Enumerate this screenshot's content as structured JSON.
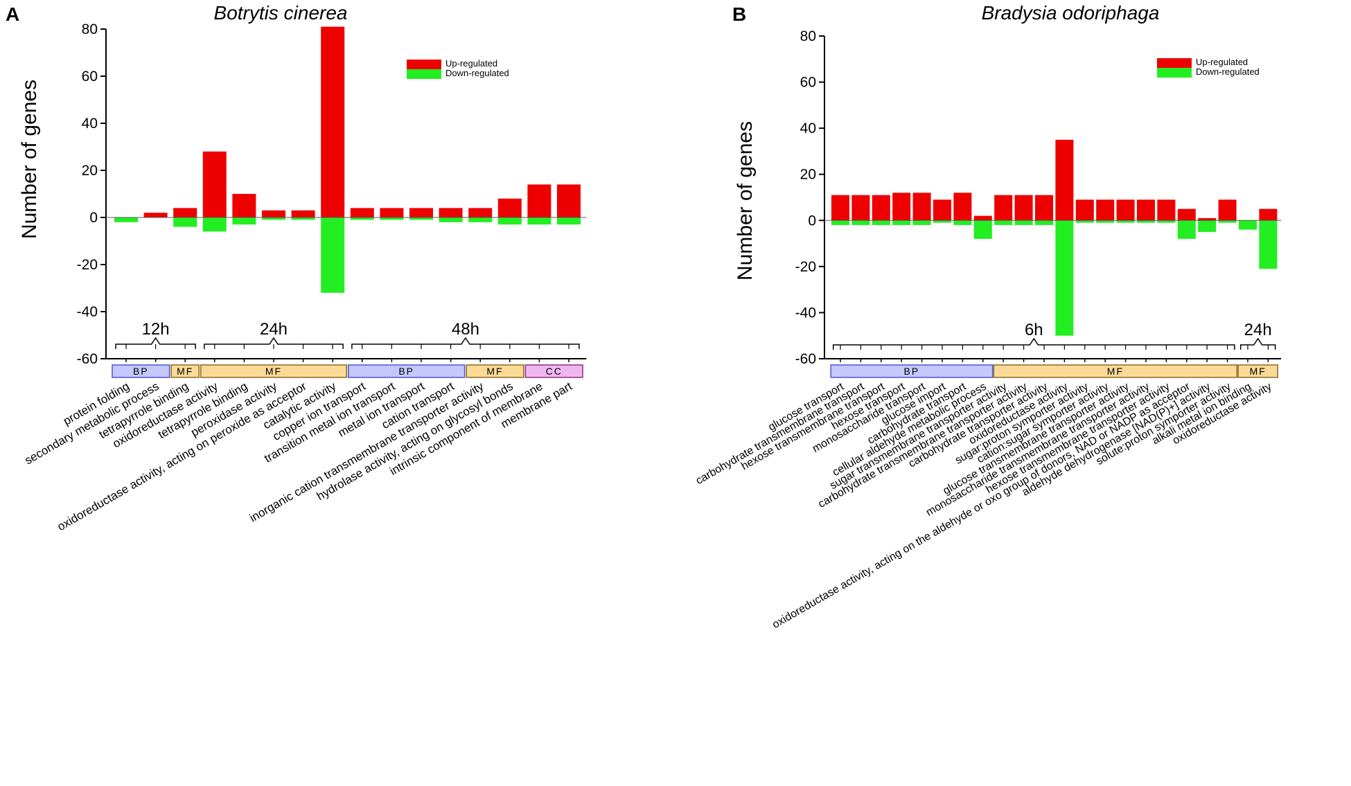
{
  "legend": {
    "up": "Up-regulated",
    "down": "Down-regulated"
  },
  "colors": {
    "up": "#ee0000",
    "down": "#22ee22",
    "axis": "#000000",
    "bp": "#c4c8fb",
    "bp_border": "#4b53d6",
    "mf": "#fbd996",
    "mf_border": "#8b6a1a",
    "cc": "#f0b6ee",
    "cc_border": "#8a2f86"
  },
  "chart_data": [
    {
      "type": "bar",
      "panel_letter": "A",
      "title": "Botrytis cinerea",
      "xlabel": "",
      "ylabel": "Number of genes",
      "ylim": [
        -60,
        80
      ],
      "yticks": [
        -60,
        -40,
        -20,
        0,
        20,
        40,
        60,
        80
      ],
      "ytick_labels": [
        "-60",
        "-40",
        "-20",
        "0",
        "20",
        "40",
        "60",
        "80"
      ],
      "categories": [
        "protein folding",
        "secondary metabolic process",
        "tetrapyrrole binding",
        "oxidoreductase activity",
        "tetrapyrrole binding",
        "peroxidase activity",
        "oxidoreductase activity, acting on peroxide as acceptor",
        "catalytic activity",
        "copper ion transport",
        "transition metal ion transport",
        "metal ion transport",
        "cation transport",
        "inorganic cation transmembrane transporter activity",
        "hydrolase activity, acting on glycosyl bonds",
        "intrinsic component of membrane",
        "membrane part"
      ],
      "series": [
        {
          "name": "Up-regulated",
          "values": [
            0,
            2,
            4,
            28,
            10,
            3,
            3,
            81,
            4,
            4,
            4,
            4,
            4,
            8,
            14,
            14
          ]
        },
        {
          "name": "Down-regulated",
          "values": [
            -2,
            0,
            -4,
            -6,
            -3,
            -1,
            -1,
            -32,
            -1,
            -1,
            -1,
            -2,
            -2,
            -3,
            -3,
            -3
          ]
        }
      ],
      "time_groups": [
        {
          "label": "12h",
          "start": 0,
          "end": 2
        },
        {
          "label": "24h",
          "start": 3,
          "end": 7
        },
        {
          "label": "48h",
          "start": 8,
          "end": 15
        }
      ],
      "go_groups": [
        {
          "label": "BP",
          "kind": "bp",
          "start": 0,
          "end": 1
        },
        {
          "label": "MF",
          "kind": "mf",
          "start": 2,
          "end": 2
        },
        {
          "label": "MF",
          "kind": "mf",
          "start": 3,
          "end": 7
        },
        {
          "label": "BP",
          "kind": "bp",
          "start": 8,
          "end": 11
        },
        {
          "label": "MF",
          "kind": "mf",
          "start": 12,
          "end": 13
        },
        {
          "label": "CC",
          "kind": "cc",
          "start": 14,
          "end": 15
        }
      ]
    },
    {
      "type": "bar",
      "panel_letter": "B",
      "title": "Bradysia odoriphaga",
      "xlabel": "",
      "ylabel": "Number of genes",
      "ylim": [
        -60,
        80
      ],
      "yticks": [
        -60,
        -40,
        -20,
        0,
        20,
        40,
        60,
        80
      ],
      "ytick_labels": [
        "-60",
        "-40",
        "-20",
        "0",
        "20",
        "40",
        "60",
        "80"
      ],
      "categories": [
        "glucose transport",
        "carbohydrate transmembrane transport",
        "hexose transmembrane transport",
        "hexose transport",
        "monosaccharide transport",
        "glucose import",
        "carbohydrate transport",
        "cellular aldehyde metabolic process",
        "sugar transmembrane transporter activity",
        "carbohydrate transmembrane transporter activity",
        "carbohydrate transporter activity",
        "oxidoreductase activity",
        "sugar:proton symporter activity",
        "cation:sugar symporter activity",
        "glucose transmembrane transporter activity",
        "monosaccharide transmembrane transporter activity",
        "hexose transmembrane transporter activity",
        "oxidoreductase activity, acting on the aldehyde or oxo group of donors, NAD or NADP as acceptor",
        "aldehyde dehydrogenase [NAD(P)+] activity",
        "solute:proton symporter activity",
        "alkali metal ion binding",
        "oxidoreductase activity"
      ],
      "series": [
        {
          "name": "Up-regulated",
          "values": [
            11,
            11,
            11,
            12,
            12,
            9,
            12,
            2,
            11,
            11,
            11,
            35,
            9,
            9,
            9,
            9,
            9,
            5,
            1,
            9,
            0,
            5
          ]
        },
        {
          "name": "Down-regulated",
          "values": [
            -2,
            -2,
            -2,
            -2,
            -2,
            -1,
            -2,
            -8,
            -2,
            -2,
            -2,
            -50,
            -1,
            -1,
            -1,
            -1,
            -1,
            -8,
            -5,
            -1,
            -4,
            -21
          ]
        }
      ],
      "time_groups": [
        {
          "label": "6h",
          "start": 0,
          "end": 19
        },
        {
          "label": "24h",
          "start": 20,
          "end": 21
        }
      ],
      "go_groups": [
        {
          "label": "BP",
          "kind": "bp",
          "start": 0,
          "end": 7
        },
        {
          "label": "MF",
          "kind": "mf",
          "start": 8,
          "end": 19
        },
        {
          "label": "MF",
          "kind": "mf",
          "start": 20,
          "end": 21
        }
      ]
    }
  ]
}
